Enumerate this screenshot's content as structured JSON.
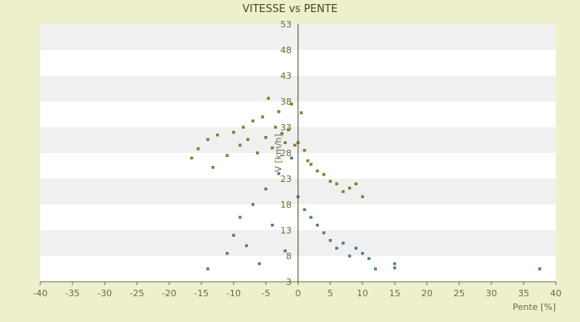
{
  "chart_data": {
    "type": "scatter",
    "title": "VITESSE vs PENTE",
    "xlabel": "Pente [%]",
    "ylabel": "V [km/h]",
    "xlim": [
      -40,
      40
    ],
    "ylim": [
      3,
      53
    ],
    "xticks": [
      "-40",
      "-35",
      "-30",
      "-25",
      "-20",
      "-15",
      "-10",
      "-5",
      "0",
      "5",
      "10",
      "15",
      "20",
      "25",
      "30",
      "35",
      "40"
    ],
    "yticks": [
      "3",
      "8",
      "13",
      "18",
      "23",
      "28",
      "33",
      "38",
      "43",
      "48",
      "53"
    ],
    "grid": "alternating horizontal bands",
    "series": [
      {
        "color": "#8a8a10",
        "points": [
          [
            -16.5,
            27.0
          ],
          [
            -15.5,
            28.8
          ],
          [
            -14.0,
            30.6
          ],
          [
            -13.2,
            25.2
          ],
          [
            -12.5,
            31.5
          ],
          [
            -11.0,
            27.5
          ],
          [
            -10.0,
            32.0
          ],
          [
            -9.0,
            29.5
          ],
          [
            -8.5,
            33.0
          ],
          [
            -7.8,
            30.6
          ],
          [
            -7.0,
            34.2
          ],
          [
            -6.3,
            28.0
          ],
          [
            -5.5,
            35.0
          ],
          [
            -5.0,
            31.0
          ],
          [
            -4.6,
            38.6
          ],
          [
            -4.0,
            29.0
          ],
          [
            -3.5,
            33.0
          ],
          [
            -3.0,
            36.0
          ],
          [
            -2.5,
            31.8
          ],
          [
            -2.0,
            30.0
          ],
          [
            -1.5,
            32.5
          ],
          [
            -1.0,
            37.5
          ],
          [
            -0.5,
            29.5
          ],
          [
            0.0,
            30.0
          ],
          [
            0.5,
            35.8
          ],
          [
            1.0,
            28.5
          ],
          [
            1.5,
            26.5
          ],
          [
            2.0,
            25.8
          ],
          [
            3.0,
            24.5
          ],
          [
            4.0,
            23.8
          ],
          [
            5.0,
            22.5
          ],
          [
            6.0,
            22.0
          ],
          [
            7.0,
            20.5
          ],
          [
            8.0,
            21.2
          ],
          [
            9.0,
            22.0
          ],
          [
            10.0,
            19.5
          ]
        ]
      },
      {
        "color": "#3b82c4",
        "points": [
          [
            -14.0,
            5.5
          ],
          [
            -11.0,
            8.5
          ],
          [
            -10.0,
            12.0
          ],
          [
            -9.0,
            15.5
          ],
          [
            -8.0,
            10.0
          ],
          [
            -7.0,
            18.0
          ],
          [
            -6.0,
            6.5
          ],
          [
            -5.0,
            21.0
          ],
          [
            -4.0,
            14.0
          ],
          [
            -3.0,
            24.0
          ],
          [
            -2.0,
            9.0
          ],
          [
            -1.0,
            27.0
          ],
          [
            0.0,
            19.5
          ],
          [
            1.0,
            17.0
          ],
          [
            2.0,
            15.5
          ],
          [
            3.0,
            14.0
          ],
          [
            4.0,
            12.5
          ],
          [
            5.0,
            11.0
          ],
          [
            6.0,
            9.5
          ],
          [
            7.0,
            10.5
          ],
          [
            8.0,
            8.0
          ],
          [
            9.0,
            9.5
          ],
          [
            10.0,
            8.5
          ],
          [
            11.0,
            7.5
          ],
          [
            12.0,
            5.5
          ],
          [
            15.0,
            6.5
          ],
          [
            15.0,
            5.7
          ],
          [
            37.5,
            5.5
          ]
        ]
      }
    ]
  }
}
